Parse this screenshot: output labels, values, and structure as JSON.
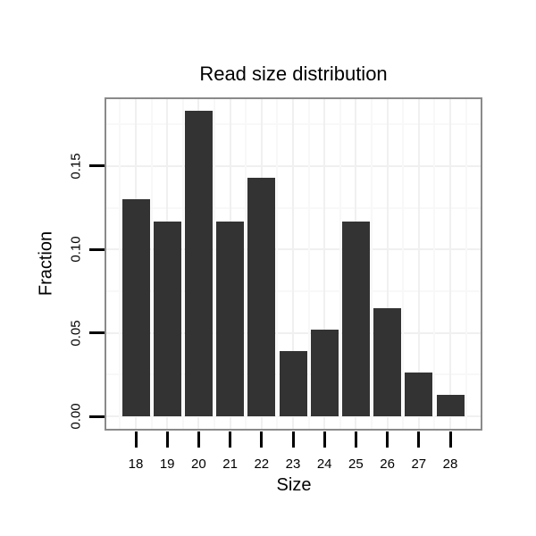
{
  "chart_data": {
    "type": "bar",
    "title": "Read size distribution",
    "xlabel": "Size",
    "ylabel": "Fraction",
    "categories": [
      "18",
      "19",
      "20",
      "21",
      "22",
      "23",
      "24",
      "25",
      "26",
      "27",
      "28"
    ],
    "values": [
      0.13,
      0.117,
      0.183,
      0.117,
      0.143,
      0.039,
      0.052,
      0.117,
      0.065,
      0.026,
      0.013
    ],
    "y_ticks": [
      {
        "label": "0.00",
        "value": 0.0
      },
      {
        "label": "0.05",
        "value": 0.05
      },
      {
        "label": "0.10",
        "value": 0.1
      },
      {
        "label": "0.15",
        "value": 0.15
      }
    ],
    "ylim": [
      -0.009,
      0.191
    ],
    "grid": "major and minor, very light gray, horizontal and vertical",
    "legend": "none",
    "colors": {
      "bar": "#333333",
      "panel_border": "#8a8a8a",
      "grid_major": "#f0f0f0",
      "grid_minor": "#f8f8f8",
      "background": "#ffffff",
      "text": "#000000",
      "tick": "#000000"
    }
  }
}
